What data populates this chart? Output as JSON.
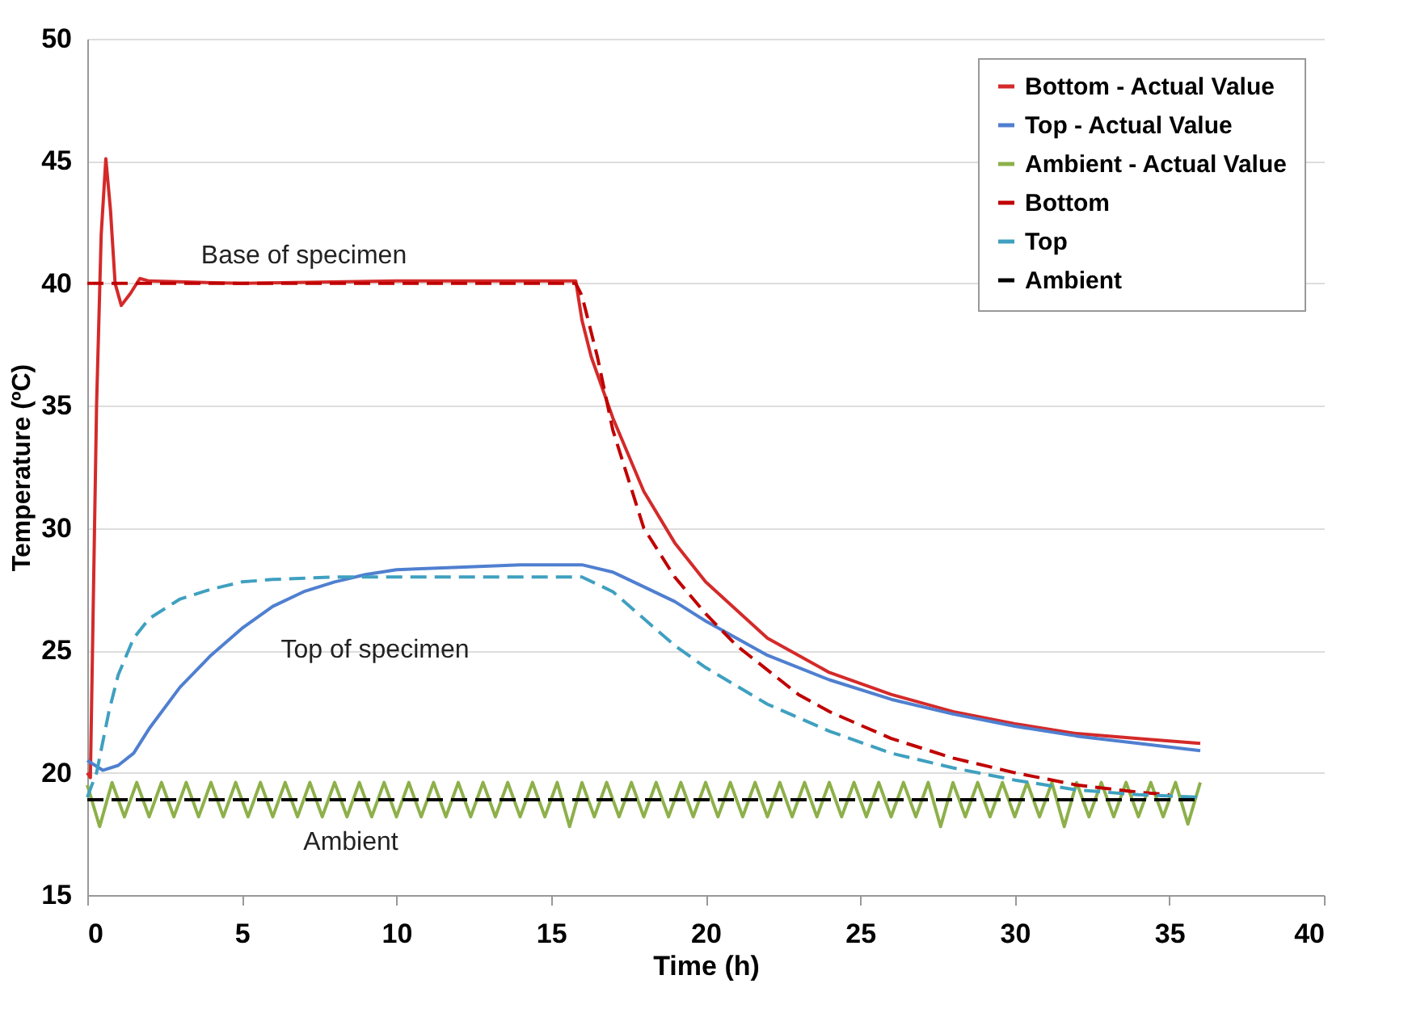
{
  "chart_data": {
    "type": "line",
    "xlabel": "Time (h)",
    "ylabel": "Temperature (ºC)",
    "xlim": [
      0,
      40
    ],
    "xticks": [
      0,
      5,
      10,
      15,
      20,
      25,
      30,
      35,
      40
    ],
    "ylim": [
      15,
      50
    ],
    "yticks": [
      15,
      20,
      25,
      30,
      35,
      40,
      45,
      50
    ],
    "grid": "y",
    "legend": "top right",
    "marker": "none",
    "annotations": [
      "Base of specimen",
      "Top of specimen",
      "Ambient"
    ],
    "series": [
      {
        "name": "Bottom - Actual Value",
        "color": "#d42a2a",
        "line_style": "solid",
        "x": [
          0,
          0.1,
          0.3,
          0.45,
          0.6,
          0.75,
          0.9,
          1.1,
          1.4,
          1.7,
          2,
          5,
          10,
          15,
          15.8,
          16,
          16.3,
          17,
          18,
          19,
          20,
          22,
          24,
          26,
          28,
          30,
          32,
          34,
          36
        ],
        "values": [
          20,
          19.8,
          35,
          42,
          45.1,
          43,
          40,
          39.1,
          39.6,
          40.2,
          40.1,
          40,
          40.1,
          40.1,
          40.1,
          38.5,
          37,
          34.5,
          31.5,
          29.4,
          27.8,
          25.5,
          24.1,
          23.2,
          22.5,
          22,
          21.6,
          21.4,
          21.2
        ]
      },
      {
        "name": "Top - Actual Value",
        "color": "#4f7fd0",
        "line_style": "solid",
        "x": [
          0,
          0.5,
          1,
          1.5,
          2,
          3,
          4,
          5,
          6,
          7,
          8,
          9,
          10,
          12,
          14,
          15,
          16,
          17,
          18,
          19,
          20,
          21,
          22,
          24,
          26,
          28,
          30,
          32,
          34,
          36
        ],
        "values": [
          20.5,
          20.1,
          20.3,
          20.8,
          21.8,
          23.5,
          24.8,
          25.9,
          26.8,
          27.4,
          27.8,
          28.1,
          28.3,
          28.4,
          28.5,
          28.5,
          28.5,
          28.2,
          27.6,
          27,
          26.2,
          25.5,
          24.8,
          23.8,
          23,
          22.4,
          21.9,
          21.5,
          21.2,
          20.9
        ]
      },
      {
        "name": "Ambient - Actual Value",
        "color": "#8db04a",
        "line_style": "solid",
        "x": [
          0,
          0.4,
          0.8,
          1.2,
          1.6,
          2,
          2.4,
          2.8,
          3.2,
          3.6,
          4,
          4.4,
          4.8,
          5.2,
          5.6,
          6,
          6.4,
          6.8,
          7.2,
          7.6,
          8,
          8.4,
          8.8,
          9.2,
          9.6,
          10,
          10.4,
          10.8,
          11.2,
          11.6,
          12,
          12.4,
          12.8,
          13.2,
          13.6,
          14,
          14.4,
          14.8,
          15.2,
          15.6,
          16,
          16.4,
          16.8,
          17.2,
          17.6,
          18,
          18.4,
          18.8,
          19.2,
          19.6,
          20,
          20.4,
          20.8,
          21.2,
          21.6,
          22,
          22.4,
          22.8,
          23.2,
          23.6,
          24,
          24.4,
          24.8,
          25.2,
          25.6,
          26,
          26.4,
          26.8,
          27.2,
          27.6,
          28,
          28.4,
          28.8,
          29.2,
          29.6,
          30,
          30.4,
          30.8,
          31.2,
          31.6,
          32,
          32.4,
          32.8,
          33.2,
          33.6,
          34,
          34.4,
          34.8,
          35.2,
          35.6,
          36
        ],
        "values": [
          19.5,
          17.8,
          19.6,
          18.2,
          19.6,
          18.2,
          19.6,
          18.2,
          19.6,
          18.2,
          19.6,
          18.2,
          19.6,
          18.2,
          19.6,
          18.2,
          19.6,
          18.2,
          19.6,
          18.2,
          19.6,
          18.2,
          19.6,
          18.2,
          19.6,
          18.2,
          19.6,
          18.2,
          19.6,
          18.2,
          19.6,
          18.2,
          19.6,
          18.2,
          19.6,
          18.2,
          19.6,
          18.2,
          19.6,
          17.8,
          19.6,
          18.2,
          19.6,
          18.2,
          19.6,
          18.2,
          19.6,
          18.2,
          19.6,
          18.2,
          19.6,
          18.2,
          19.6,
          18.2,
          19.6,
          18.2,
          19.6,
          18.2,
          19.6,
          18.2,
          19.6,
          18.2,
          19.6,
          18.2,
          19.6,
          18.2,
          19.6,
          18.2,
          19.6,
          17.8,
          19.6,
          18.2,
          19.6,
          18.2,
          19.6,
          18.2,
          19.6,
          18.2,
          19.6,
          17.8,
          19.6,
          18.2,
          19.6,
          18.2,
          19.6,
          18.2,
          19.6,
          18.2,
          19.6,
          17.9,
          19.6
        ]
      },
      {
        "name": "Bottom",
        "color": "#c00000",
        "line_style": "dashed",
        "x": [
          0,
          15.8,
          16,
          16.5,
          17,
          17.5,
          18,
          19,
          20,
          21,
          22,
          23,
          24,
          26,
          28,
          30,
          32,
          34,
          35
        ],
        "values": [
          40,
          40,
          39.5,
          37,
          34,
          32,
          30,
          28,
          26.5,
          25.2,
          24.2,
          23.2,
          22.5,
          21.4,
          20.6,
          20,
          19.5,
          19.2,
          19.1
        ]
      },
      {
        "name": "Top",
        "color": "#3fa0c0",
        "line_style": "dashed",
        "x": [
          0,
          0.3,
          0.7,
          1,
          1.5,
          2,
          3,
          4,
          5,
          6,
          8,
          15,
          16,
          17,
          18,
          19,
          20,
          22,
          24,
          26,
          28,
          30,
          32,
          34,
          36
        ],
        "values": [
          19,
          20,
          22.5,
          24,
          25.5,
          26.3,
          27.1,
          27.5,
          27.8,
          27.9,
          28,
          28,
          28,
          27.4,
          26.3,
          25.2,
          24.3,
          22.8,
          21.7,
          20.8,
          20.2,
          19.7,
          19.3,
          19.1,
          19
        ]
      },
      {
        "name": "Ambient",
        "color": "#000000",
        "line_style": "dashed",
        "x": [
          0,
          36
        ],
        "values": [
          18.9,
          18.9
        ]
      }
    ]
  }
}
